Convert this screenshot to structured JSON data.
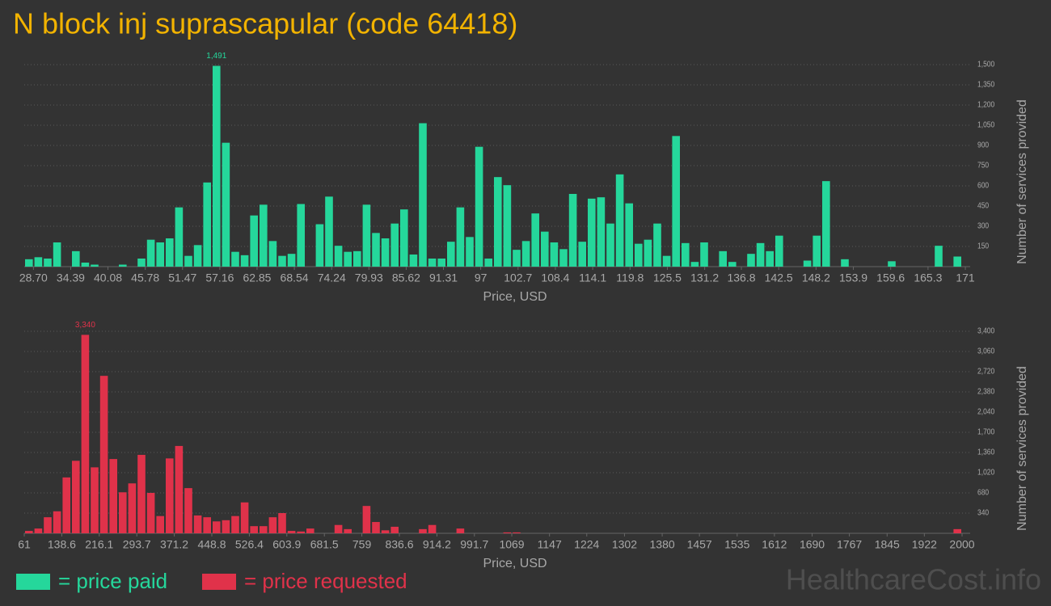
{
  "title": "N block inj suprascapular (code 64418)",
  "watermark": "HealthcareCost.info",
  "chart_data": [
    {
      "type": "histogram",
      "name": "= price paid",
      "color": "#25d79b",
      "xlabel": "Price, USD",
      "ylabel": "Number of services provided",
      "peak_label": "1,491",
      "xlim": [
        27.3,
        170.5
      ],
      "xticks": [
        {
          "value": 28.7,
          "label": "28.70"
        },
        34.39,
        40.08,
        45.78,
        51.47,
        57.16,
        62.85,
        68.54,
        74.24,
        79.93,
        85.62,
        91.31,
        97,
        102.7,
        108.4,
        114.1,
        119.8,
        125.5,
        131.2,
        136.8,
        142.5,
        148.2,
        153.9,
        159.6,
        165.3,
        171
      ],
      "ylim": [
        0,
        1500
      ],
      "yticks": [
        150,
        300,
        450,
        600,
        750,
        900,
        {
          "value": 1050,
          "label": "1,050"
        },
        {
          "value": 1200,
          "label": "1,200"
        },
        {
          "value": 1350,
          "label": "1,350"
        },
        {
          "value": 1500,
          "label": "1,500"
        }
      ],
      "values": [
        55,
        70,
        60,
        180,
        0,
        115,
        30,
        15,
        0,
        0,
        15,
        0,
        60,
        200,
        180,
        210,
        440,
        80,
        160,
        625,
        1491,
        920,
        110,
        85,
        380,
        460,
        190,
        80,
        95,
        465,
        0,
        315,
        520,
        155,
        110,
        115,
        460,
        250,
        210,
        320,
        425,
        90,
        1065,
        60,
        60,
        185,
        440,
        220,
        890,
        60,
        665,
        605,
        125,
        190,
        395,
        260,
        180,
        130,
        540,
        185,
        505,
        515,
        320,
        685,
        470,
        170,
        200,
        320,
        80,
        970,
        175,
        35,
        180,
        0,
        115,
        35,
        0,
        95,
        175,
        115,
        230,
        0,
        0,
        45,
        230,
        635,
        0,
        55,
        0,
        0,
        0,
        0,
        40,
        0,
        0,
        0,
        0,
        155,
        0,
        75
      ]
    },
    {
      "type": "histogram",
      "name": "= price requested",
      "color": "#e0324a",
      "xlabel": "Price, USD",
      "ylabel": "Number of services provided",
      "peak_label": "3,340",
      "xlim": [
        61,
        2000
      ],
      "xticks": [
        61,
        138.6,
        216.1,
        293.7,
        371.2,
        448.8,
        526.4,
        603.9,
        681.5,
        759,
        836.6,
        914.2,
        991.7,
        1069,
        1147,
        1224,
        1302,
        1380,
        1457,
        1535,
        1612,
        1690,
        1767,
        1845,
        1922,
        2000
      ],
      "ylim": [
        0,
        3400
      ],
      "yticks": [
        340,
        680,
        {
          "value": 1020,
          "label": "1,020"
        },
        {
          "value": 1360,
          "label": "1,360"
        },
        {
          "value": 1700,
          "label": "1,700"
        },
        {
          "value": 2040,
          "label": "2,040"
        },
        {
          "value": 2380,
          "label": "2,380"
        },
        {
          "value": 2720,
          "label": "2,720"
        },
        {
          "value": 3060,
          "label": "3,060"
        },
        {
          "value": 3400,
          "label": "3,400"
        }
      ],
      "values": [
        40,
        80,
        270,
        370,
        940,
        1220,
        3340,
        1110,
        2650,
        1250,
        690,
        840,
        1320,
        680,
        290,
        1260,
        1470,
        760,
        300,
        270,
        200,
        220,
        290,
        520,
        120,
        120,
        270,
        340,
        40,
        30,
        80,
        0,
        0,
        140,
        70,
        0,
        460,
        190,
        50,
        110,
        0,
        0,
        70,
        140,
        0,
        0,
        80,
        0,
        0,
        0,
        0,
        15,
        15,
        0,
        0,
        0,
        0,
        0,
        0,
        0,
        0,
        0,
        0,
        0,
        0,
        0,
        0,
        0,
        0,
        0,
        0,
        0,
        0,
        0,
        0,
        0,
        0,
        0,
        0,
        0,
        0,
        0,
        0,
        0,
        0,
        0,
        0,
        0,
        0,
        0,
        0,
        0,
        0,
        0,
        0,
        0,
        0,
        0,
        0,
        70
      ]
    }
  ]
}
